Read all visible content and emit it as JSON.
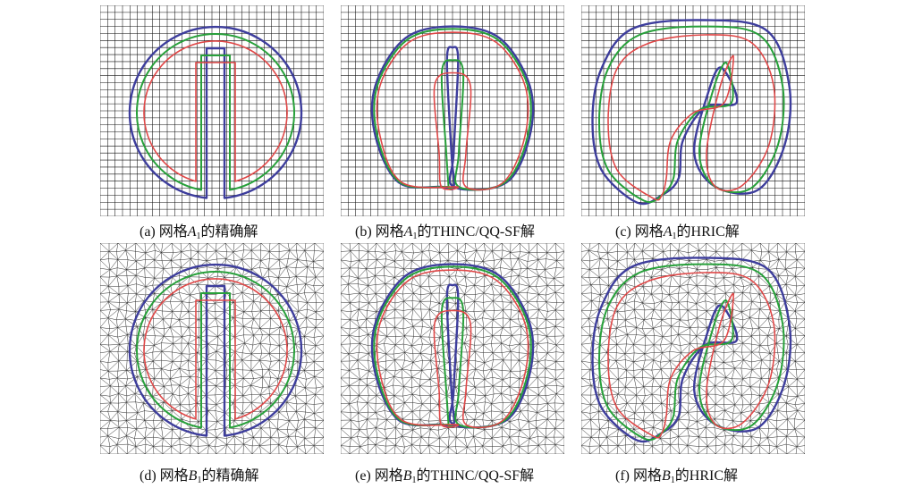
{
  "colors": {
    "outer": "#3d3d9c",
    "middle": "#27a03a",
    "inner": "#e04848",
    "grid": "#111111",
    "mesh": "#2a2a2a"
  },
  "panels": [
    {
      "id": "a",
      "prefix": "(a) 网格",
      "var": "A",
      "sub": "1",
      "suffix": "的精确解",
      "mesh": "structured",
      "shape": "exact"
    },
    {
      "id": "b",
      "prefix": "(b) 网格",
      "var": "A",
      "sub": "1",
      "suffix": "的THINC/QQ-SF解",
      "mesh": "structured",
      "shape": "thinc"
    },
    {
      "id": "c",
      "prefix": "(c) 网格",
      "var": "A",
      "sub": "1",
      "suffix": "的HRIC解",
      "mesh": "structured",
      "shape": "hric"
    },
    {
      "id": "d",
      "prefix": "(d) 网格",
      "var": "B",
      "sub": "1",
      "suffix": "的精确解",
      "mesh": "triangular",
      "shape": "exact"
    },
    {
      "id": "e",
      "prefix": "(e) 网格",
      "var": "B",
      "sub": "1",
      "suffix": "的THINC/QQ-SF解",
      "mesh": "triangular",
      "shape": "thinc"
    },
    {
      "id": "f",
      "prefix": "(f) 网格",
      "var": "B",
      "sub": "1",
      "suffix": "的HRIC解",
      "mesh": "triangular",
      "shape": "hric"
    }
  ]
}
